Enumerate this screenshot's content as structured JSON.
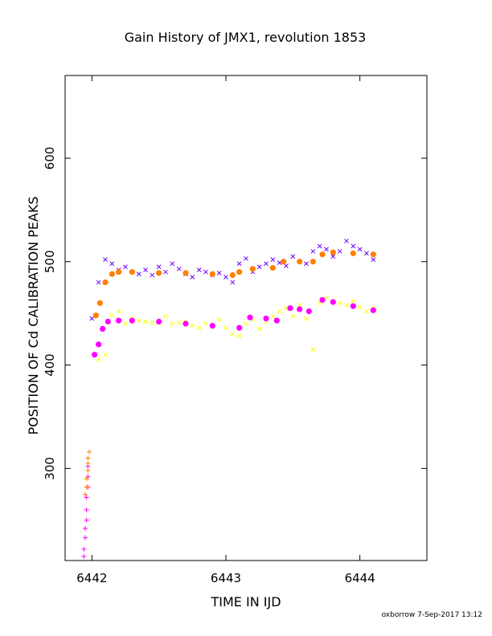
{
  "chart_data": {
    "type": "scatter",
    "title": "Gain History of JMX1, revolution 1853",
    "xlabel": "TIME IN IJD",
    "ylabel": "POSITION OF Cd CALIBRATION PEAKS",
    "xlim": [
      6441.8,
      6444.5
    ],
    "ylim": [
      211,
      680
    ],
    "xticks": [
      6442,
      6443,
      6444
    ],
    "xtick_labels": [
      "6442",
      "6443",
      "6444"
    ],
    "yticks": [
      300,
      400,
      500,
      600
    ],
    "ytick_labels": [
      "300",
      "400",
      "500",
      "600"
    ],
    "grid": false,
    "legend": "none",
    "footer": "oxborrow  7-Sep-2017 13:12",
    "series": [
      {
        "marker": "x",
        "color": "#7000ff",
        "x": [
          6442.0,
          6442.05,
          6442.1,
          6442.15,
          6442.2,
          6442.25,
          6442.3,
          6442.35,
          6442.4,
          6442.45,
          6442.5,
          6442.55,
          6442.6,
          6442.65,
          6442.7,
          6442.75,
          6442.8,
          6442.85,
          6442.9,
          6442.95,
          6443.0,
          6443.05,
          6443.1,
          6443.15,
          6443.2,
          6443.25,
          6443.3,
          6443.35,
          6443.4,
          6443.45,
          6443.5,
          6443.55,
          6443.6,
          6443.65,
          6443.7,
          6443.75,
          6443.8,
          6443.85,
          6443.9,
          6443.95,
          6444.0,
          6444.05,
          6444.1
        ],
        "y": [
          445,
          480,
          502,
          498,
          492,
          495,
          490,
          488,
          492,
          487,
          495,
          490,
          498,
          493,
          488,
          485,
          492,
          490,
          487,
          489,
          485,
          480,
          498,
          503,
          490,
          495,
          498,
          502,
          499,
          496,
          505,
          500,
          498,
          510,
          515,
          512,
          505,
          510,
          520,
          515,
          512,
          508,
          502
        ]
      },
      {
        "marker": "x",
        "color": "#ffff00",
        "x": [
          6442.05,
          6442.1,
          6442.15,
          6442.2,
          6442.25,
          6442.3,
          6442.35,
          6442.4,
          6442.45,
          6442.5,
          6442.55,
          6442.6,
          6442.65,
          6442.7,
          6442.75,
          6442.8,
          6442.85,
          6442.9,
          6442.95,
          6443.0,
          6443.05,
          6443.1,
          6443.15,
          6443.2,
          6443.25,
          6443.3,
          6443.35,
          6443.4,
          6443.45,
          6443.5,
          6443.55,
          6443.6,
          6443.65,
          6443.7,
          6443.75,
          6443.8,
          6443.85,
          6443.9,
          6443.95,
          6444.0,
          6444.05,
          6444.1
        ],
        "y": [
          405,
          410,
          448,
          452,
          440,
          445,
          443,
          442,
          441,
          440,
          447,
          440,
          441,
          442,
          438,
          436,
          440,
          437,
          444,
          436,
          430,
          428,
          440,
          444,
          435,
          442,
          447,
          452,
          455,
          447,
          458,
          445,
          415,
          460,
          465,
          462,
          460,
          458,
          462,
          456,
          452,
          455
        ]
      },
      {
        "marker": "dot",
        "color": "#ff8000",
        "x": [
          6442.03,
          6442.06,
          6442.1,
          6442.15,
          6442.2,
          6442.3,
          6442.5,
          6442.7,
          6442.9,
          6443.05,
          6443.1,
          6443.2,
          6443.35,
          6443.43,
          6443.55,
          6443.65,
          6443.72,
          6443.8,
          6443.95,
          6444.1
        ],
        "y": [
          448,
          460,
          480,
          488,
          490,
          490,
          489,
          489,
          488,
          487,
          490,
          493,
          494,
          500,
          500,
          500,
          507,
          509,
          508,
          507
        ]
      },
      {
        "marker": "dot",
        "color": "#ff00ff",
        "x": [
          6442.02,
          6442.05,
          6442.08,
          6442.12,
          6442.2,
          6442.3,
          6442.5,
          6442.7,
          6442.9,
          6443.1,
          6443.18,
          6443.3,
          6443.38,
          6443.48,
          6443.55,
          6443.62,
          6443.72,
          6443.8,
          6443.95,
          6444.1
        ],
        "y": [
          410,
          420,
          435,
          442,
          443,
          443,
          442,
          440,
          438,
          436,
          446,
          445,
          443,
          455,
          454,
          452,
          463,
          461,
          457,
          453
        ]
      },
      {
        "marker": "+",
        "color": "#ff00ff",
        "x": [
          6441.94,
          6441.94,
          6441.95,
          6441.95,
          6441.96,
          6441.96,
          6441.96,
          6441.97,
          6441.97,
          6441.97
        ],
        "y": [
          215,
          222,
          233,
          242,
          250,
          260,
          272,
          282,
          292,
          302
        ]
      },
      {
        "marker": "+",
        "color": "#ff8000",
        "x": [
          6441.95,
          6441.96,
          6441.96,
          6441.97,
          6441.97,
          6441.97,
          6441.98
        ],
        "y": [
          275,
          282,
          290,
          298,
          305,
          310,
          316
        ]
      }
    ]
  }
}
